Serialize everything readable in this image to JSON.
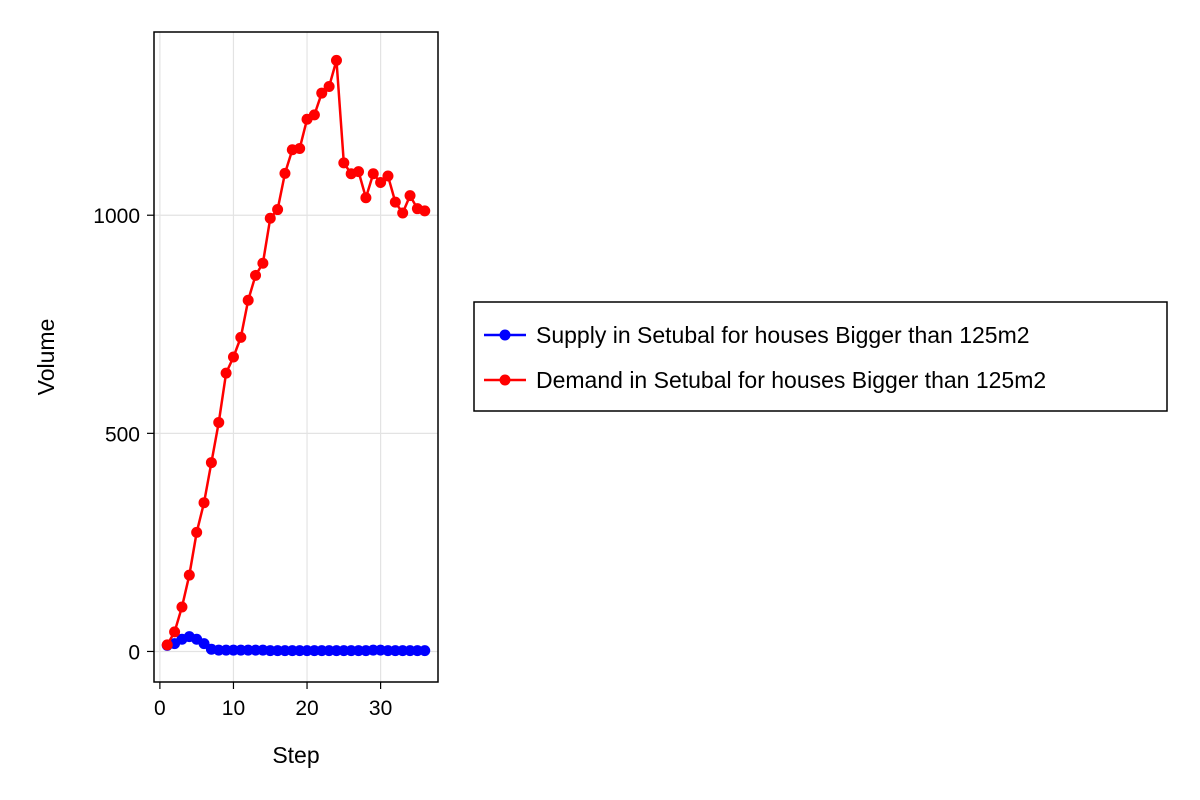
{
  "chart_data": {
    "type": "line",
    "title": "",
    "xlabel": "Step",
    "ylabel": "Volume",
    "xlim": [
      -0.8,
      37.8
    ],
    "ylim": [
      -70,
      1420
    ],
    "xticks": [
      0,
      10,
      20,
      30
    ],
    "yticks": [
      0,
      500,
      1000
    ],
    "grid": true,
    "legend_position": "right",
    "series": [
      {
        "name": "Supply in Setubal for houses Bigger than 125m2",
        "color": "#0000ff",
        "marker": "circle",
        "x": [
          1,
          2,
          3,
          4,
          5,
          6,
          7,
          8,
          9,
          10,
          11,
          12,
          13,
          14,
          15,
          16,
          17,
          18,
          19,
          20,
          21,
          22,
          23,
          24,
          25,
          26,
          27,
          28,
          29,
          30,
          31,
          32,
          33,
          34,
          35,
          36
        ],
        "values": [
          14,
          18,
          28,
          34,
          28,
          18,
          5,
          3,
          3,
          3,
          3,
          3,
          3,
          3,
          2,
          2,
          2,
          2,
          2,
          2,
          2,
          2,
          2,
          2,
          2,
          2,
          2,
          2,
          3,
          3,
          2,
          2,
          2,
          2,
          2,
          2
        ]
      },
      {
        "name": "Demand in Setubal for houses Bigger than 125m2",
        "color": "#ff0000",
        "marker": "circle",
        "x": [
          1,
          2,
          3,
          4,
          5,
          6,
          7,
          8,
          9,
          10,
          11,
          12,
          13,
          14,
          15,
          16,
          17,
          18,
          19,
          20,
          21,
          22,
          23,
          24,
          25,
          26,
          27,
          28,
          29,
          30,
          31,
          32,
          33,
          34,
          35,
          36
        ],
        "values": [
          15,
          45,
          102,
          175,
          273,
          341,
          433,
          525,
          638,
          675,
          720,
          805,
          862,
          890,
          993,
          1013,
          1096,
          1150,
          1153,
          1220,
          1230,
          1280,
          1295,
          1355,
          1120,
          1095,
          1100,
          1040,
          1095,
          1075,
          1090,
          1030,
          1005,
          1045,
          1015,
          1010
        ]
      }
    ]
  }
}
